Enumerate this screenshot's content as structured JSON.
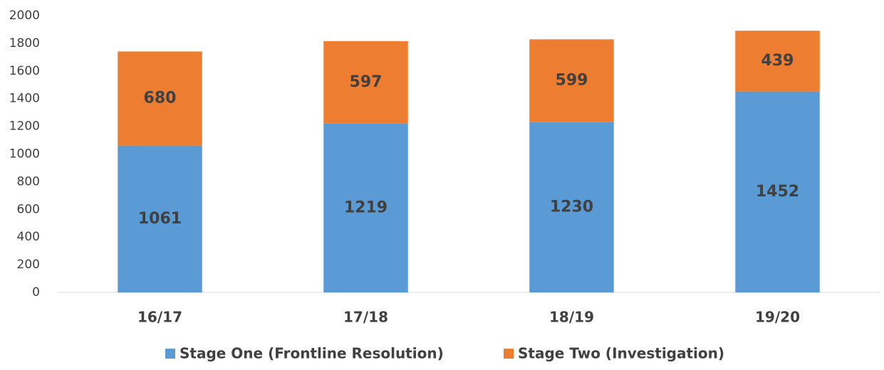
{
  "chart_data": {
    "type": "bar",
    "stacked": true,
    "categories": [
      "16/17",
      "17/18",
      "18/19",
      "19/20"
    ],
    "series": [
      {
        "name": "Stage One (Frontline Resolution)",
        "color": "#5b9bd5",
        "values": [
          1061,
          1219,
          1230,
          1452
        ]
      },
      {
        "name": "Stage Two (Investigation)",
        "color": "#ed7d31",
        "values": [
          680,
          597,
          599,
          439
        ]
      }
    ],
    "ylim": [
      0,
      2000
    ],
    "yticks": [
      0,
      200,
      400,
      600,
      800,
      1000,
      1200,
      1400,
      1600,
      1800,
      2000
    ],
    "grid": false,
    "legend": "bottom"
  }
}
